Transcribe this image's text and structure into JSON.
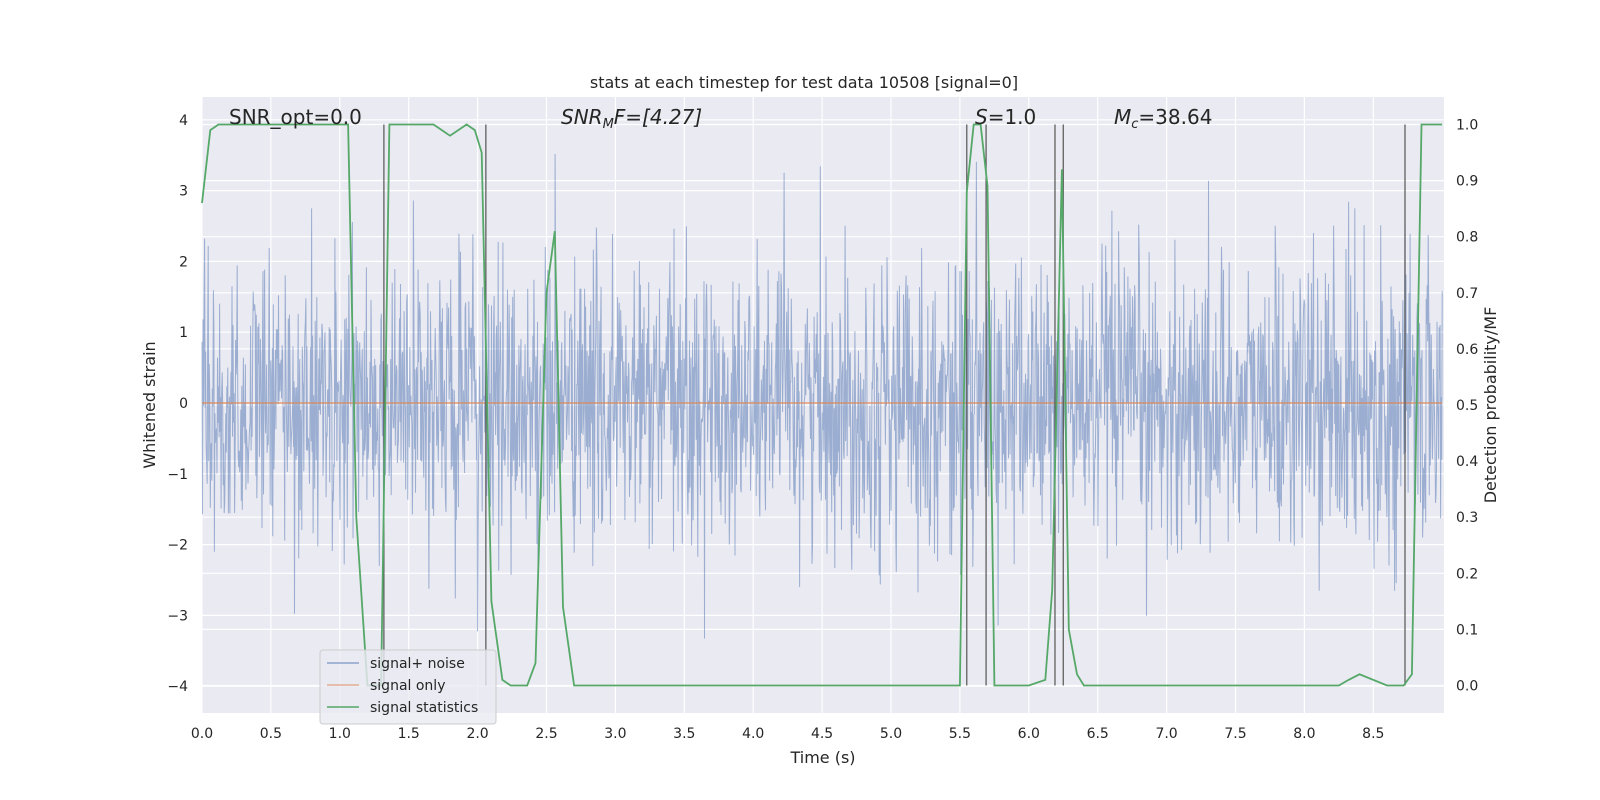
{
  "chart_data": {
    "type": "line",
    "title": "stats at each timestep for test data 10508 [signal=0]",
    "xlabel": "Time (s)",
    "ylabel": "Whitened strain",
    "y2label": "Detection probability/MF",
    "xlim": [
      0.0,
      9.0
    ],
    "ylim": [
      -4.4,
      4.3
    ],
    "y2lim": [
      -0.048,
      1.048
    ],
    "x_ticks": [
      "0.0",
      "0.5",
      "1.0",
      "1.5",
      "2.0",
      "2.5",
      "3.0",
      "3.5",
      "4.0",
      "4.5",
      "5.0",
      "5.5",
      "6.0",
      "6.5",
      "7.0",
      "7.5",
      "8.0",
      "8.5"
    ],
    "y_ticks": [
      "4",
      "3",
      "2",
      "1",
      "0",
      "−1",
      "−2",
      "−3",
      "−4"
    ],
    "y2_ticks": [
      "1.0",
      "0.9",
      "0.8",
      "0.7",
      "0.6",
      "0.5",
      "0.4",
      "0.3",
      "0.2",
      "0.1",
      "0.0"
    ],
    "grid": true,
    "legend_position": "lower-left",
    "annotations": {
      "snr_opt": "SNR_opt=0.0",
      "snr_mf_prefix": "SNR",
      "snr_mf_sub": "M",
      "snr_mf_suffix": "F=[4.27]",
      "s_prefix": "S",
      "s_suffix": "=1.0",
      "mc_prefix": "M",
      "mc_sub": "c",
      "mc_suffix": "=38.64"
    },
    "series": [
      {
        "name": "signal+ noise",
        "color": "#4c72b0",
        "axis": "left",
        "style": "dense gaussian noise, amplitude roughly ±2, peaks near ±3.5"
      },
      {
        "name": "signal only",
        "color": "#dd8452",
        "axis": "left",
        "x": [
          0.0,
          9.0
        ],
        "y": [
          0.0,
          0.0
        ]
      },
      {
        "name": "signal statistics",
        "color": "#55a868",
        "axis": "right",
        "x": [
          0.0,
          0.06,
          0.12,
          0.5,
          1.0,
          1.06,
          1.12,
          1.2,
          1.3,
          1.36,
          1.5,
          1.68,
          1.74,
          1.8,
          1.86,
          1.92,
          1.98,
          2.03,
          2.1,
          2.18,
          2.24,
          2.36,
          2.42,
          2.5,
          2.56,
          2.62,
          2.7,
          2.76,
          3.0,
          4.0,
          5.0,
          5.5,
          5.55,
          5.6,
          5.65,
          5.7,
          5.75,
          5.8,
          5.85,
          5.9,
          6.0,
          6.12,
          6.17,
          6.24,
          6.29,
          6.35,
          6.4,
          6.6,
          7.0,
          8.0,
          8.25,
          8.32,
          8.4,
          8.6,
          8.72,
          8.78,
          8.85,
          9.0
        ],
        "y": [
          0.86,
          0.99,
          1.0,
          1.0,
          1.0,
          1.0,
          0.3,
          0.0,
          0.0,
          1.0,
          1.0,
          1.0,
          0.99,
          0.98,
          0.99,
          1.0,
          0.99,
          0.95,
          0.15,
          0.01,
          0.0,
          0.0,
          0.04,
          0.7,
          0.81,
          0.14,
          0.0,
          0.0,
          0.0,
          0.0,
          0.0,
          0.0,
          0.88,
          1.0,
          1.0,
          0.89,
          0.0,
          0.0,
          0.0,
          0.0,
          0.0,
          0.01,
          0.17,
          0.92,
          0.1,
          0.02,
          0.0,
          0.0,
          0.0,
          0.0,
          0.0,
          0.01,
          0.02,
          0.0,
          0.0,
          0.02,
          1.0,
          1.0
        ]
      }
    ],
    "vertical_markers": {
      "color": "#555555",
      "x": [
        1.32,
        2.06,
        5.55,
        5.69,
        6.19,
        6.25,
        8.73
      ]
    }
  }
}
